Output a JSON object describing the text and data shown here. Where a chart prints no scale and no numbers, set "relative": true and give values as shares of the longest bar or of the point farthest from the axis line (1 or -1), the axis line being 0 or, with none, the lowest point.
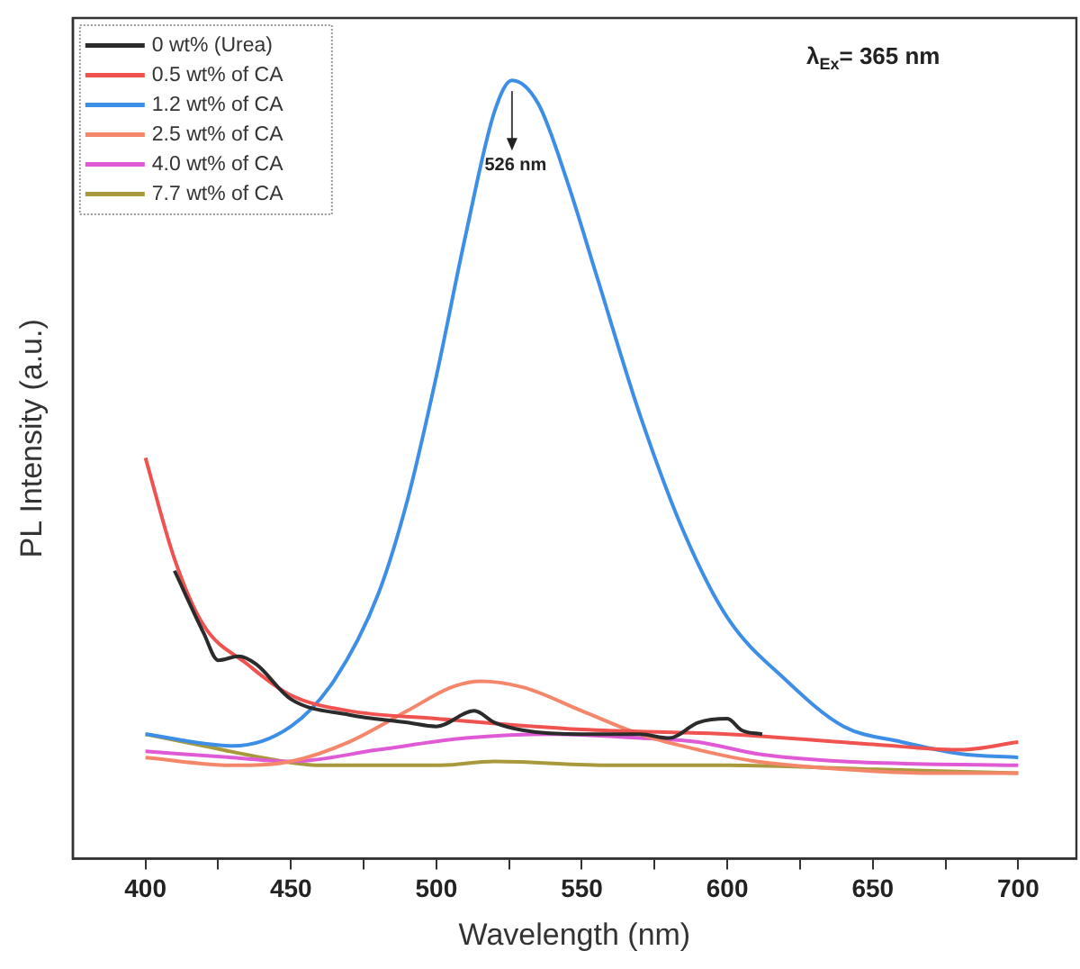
{
  "chart_data": {
    "type": "line",
    "relative": true,
    "xlabel": "Wavelength (nm)",
    "ylabel": "PL Intensity (a.u.)",
    "xlim": [
      375,
      720
    ],
    "xticks": [
      400,
      {
        "value": 425,
        "label": null
      },
      450,
      {
        "value": 475,
        "label": null
      },
      500,
      {
        "value": 525,
        "label": null
      },
      550,
      {
        "value": 575,
        "label": null
      },
      600,
      {
        "value": 625,
        "label": null
      },
      650,
      {
        "value": 675,
        "label": null
      },
      700
    ],
    "legend": "top left",
    "grid": false,
    "marker": "none",
    "line_style": "solid",
    "annotations": [
      {
        "text": "526 nm",
        "x": 526,
        "y": 1
      },
      "λ$_{Ex}$= 365 nm"
    ],
    "series": [
      {
        "name": "0 wt% (Urea)",
        "color": "#2b2b2b",
        "x": [
          410,
          420,
          425,
          432,
          438,
          450,
          470,
          490,
          500,
          513,
          520,
          530,
          550,
          570,
          580,
          590,
          600,
          605,
          612
        ],
        "values": [
          0.37,
          0.29,
          0.255,
          0.26,
          0.25,
          0.205,
          0.185,
          0.175,
          0.17,
          0.19,
          0.175,
          0.165,
          0.16,
          0.16,
          0.155,
          0.175,
          0.18,
          0.165,
          0.16
        ]
      },
      {
        "name": "0.5 wt% of CA",
        "color": "#f0524f",
        "x": [
          400,
          410,
          420,
          435,
          450,
          470,
          500,
          550,
          600,
          650,
          680,
          700
        ],
        "values": [
          0.515,
          0.385,
          0.3,
          0.25,
          0.21,
          0.19,
          0.18,
          0.166,
          0.16,
          0.147,
          0.14,
          0.15
        ]
      },
      {
        "name": "1.2 wt% of CA",
        "color": "#3d8ee6",
        "x": [
          400,
          430,
          450,
          465,
          480,
          490,
          500,
          510,
          520,
          526,
          535,
          545,
          555,
          570,
          585,
          600,
          620,
          640,
          660,
          680,
          700
        ],
        "values": [
          0.16,
          0.145,
          0.17,
          0.23,
          0.34,
          0.46,
          0.62,
          0.8,
          0.96,
          1,
          0.97,
          0.87,
          0.75,
          0.57,
          0.42,
          0.31,
          0.23,
          0.17,
          0.15,
          0.135,
          0.13
        ]
      },
      {
        "name": "2.5 wt% of CA",
        "color": "#f4866a",
        "x": [
          400,
          430,
          450,
          470,
          490,
          505,
          515,
          530,
          550,
          570,
          590,
          610,
          640,
          670,
          700
        ],
        "values": [
          0.13,
          0.12,
          0.125,
          0.15,
          0.19,
          0.22,
          0.228,
          0.22,
          0.19,
          0.16,
          0.14,
          0.125,
          0.115,
          0.11,
          0.11
        ]
      },
      {
        "name": "4.0 wt% of CA",
        "color": "#e05ad6",
        "x": [
          400,
          430,
          450,
          480,
          510,
          540,
          570,
          590,
          610,
          640,
          700
        ],
        "values": [
          0.138,
          0.13,
          0.125,
          0.14,
          0.155,
          0.16,
          0.155,
          0.15,
          0.135,
          0.125,
          0.12
        ]
      },
      {
        "name": "7.7 wt% of CA",
        "color": "#a89a3c",
        "x": [
          400,
          420,
          440,
          460,
          500,
          520,
          560,
          600,
          650,
          700
        ],
        "values": [
          0.16,
          0.145,
          0.13,
          0.12,
          0.12,
          0.125,
          0.12,
          0.12,
          0.115,
          0.11
        ]
      }
    ]
  }
}
